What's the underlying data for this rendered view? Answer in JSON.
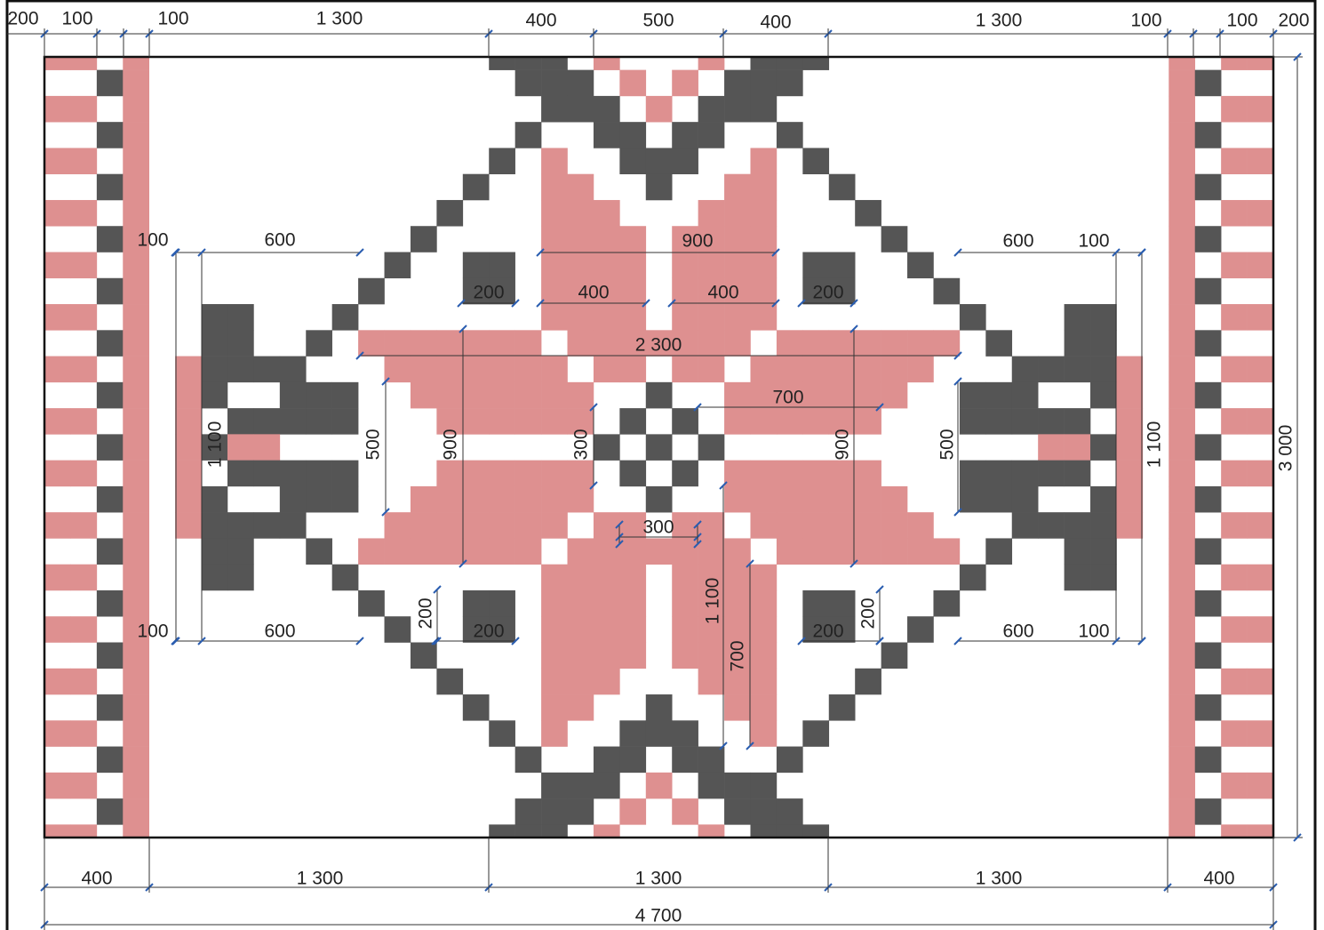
{
  "top_dimensions": [
    "200",
    "100",
    "100",
    "1 300",
    "400",
    "500",
    "400",
    "1 300",
    "100",
    "100",
    "200"
  ],
  "inner_dimensions": [
    "100",
    "600",
    "900",
    "600",
    "100",
    "200",
    "400",
    "400",
    "200",
    "2 300",
    "700",
    "1 100",
    "500",
    "900",
    "300",
    "900",
    "500",
    "1 100",
    "300",
    "1 100",
    "200",
    "200",
    "700",
    "100",
    "600",
    "200",
    "200",
    "600",
    "100"
  ],
  "bottom_dimensions": [
    "400",
    "1 300",
    "1 300",
    "1 300",
    "400"
  ],
  "overall_width": "4 700",
  "overall_height": "3 000"
}
